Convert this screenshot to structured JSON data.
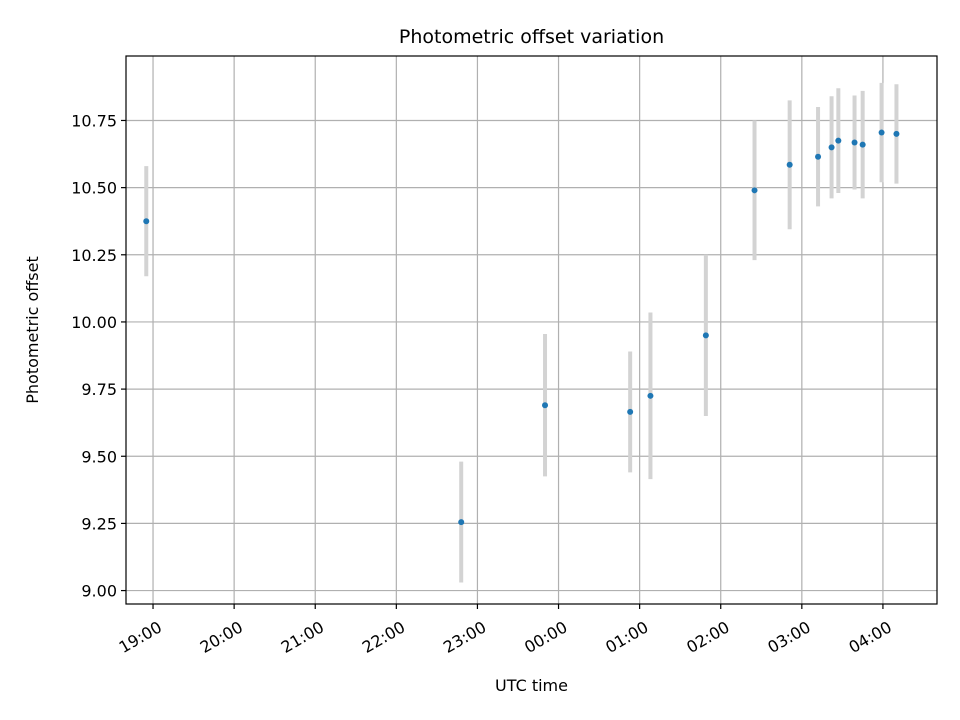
{
  "chart_data": {
    "type": "scatter",
    "title": "Photometric offset variation",
    "xlabel": "UTC time",
    "ylabel": "Photometric offset",
    "x_unit": "UTC time (hours, crossing midnight)",
    "xlim": [
      "18:40",
      "04:40"
    ],
    "ylim": [
      8.95,
      10.99
    ],
    "x_ticks": [
      "19:00",
      "20:00",
      "21:00",
      "22:00",
      "23:00",
      "00:00",
      "01:00",
      "02:00",
      "03:00",
      "04:00"
    ],
    "y_ticks": [
      "9.00",
      "9.25",
      "9.50",
      "9.75",
      "10.00",
      "10.25",
      "10.50",
      "10.75"
    ],
    "grid": true,
    "colors": {
      "point": "#1f77b4",
      "errorbar": "#d3d3d3",
      "grid": "#b0b0b0",
      "axes": "#000000"
    },
    "series": [
      {
        "points": [
          {
            "x": "18:55",
            "y": 10.375,
            "err": 0.205
          },
          {
            "x": "22:48",
            "y": 9.255,
            "err": 0.225
          },
          {
            "x": "23:50",
            "y": 9.69,
            "err": 0.265
          },
          {
            "x": "00:53",
            "y": 9.665,
            "err": 0.225
          },
          {
            "x": "01:08",
            "y": 9.725,
            "err": 0.31
          },
          {
            "x": "01:49",
            "y": 9.95,
            "err": 0.3
          },
          {
            "x": "02:25",
            "y": 10.49,
            "err": 0.26
          },
          {
            "x": "02:51",
            "y": 10.585,
            "err": 0.24
          },
          {
            "x": "03:12",
            "y": 10.615,
            "err": 0.185
          },
          {
            "x": "03:22",
            "y": 10.65,
            "err": 0.19
          },
          {
            "x": "03:27",
            "y": 10.675,
            "err": 0.195
          },
          {
            "x": "03:39",
            "y": 10.668,
            "err": 0.175
          },
          {
            "x": "03:45",
            "y": 10.66,
            "err": 0.2
          },
          {
            "x": "03:59",
            "y": 10.705,
            "err": 0.185
          },
          {
            "x": "04:10",
            "y": 10.7,
            "err": 0.185
          }
        ]
      }
    ]
  }
}
